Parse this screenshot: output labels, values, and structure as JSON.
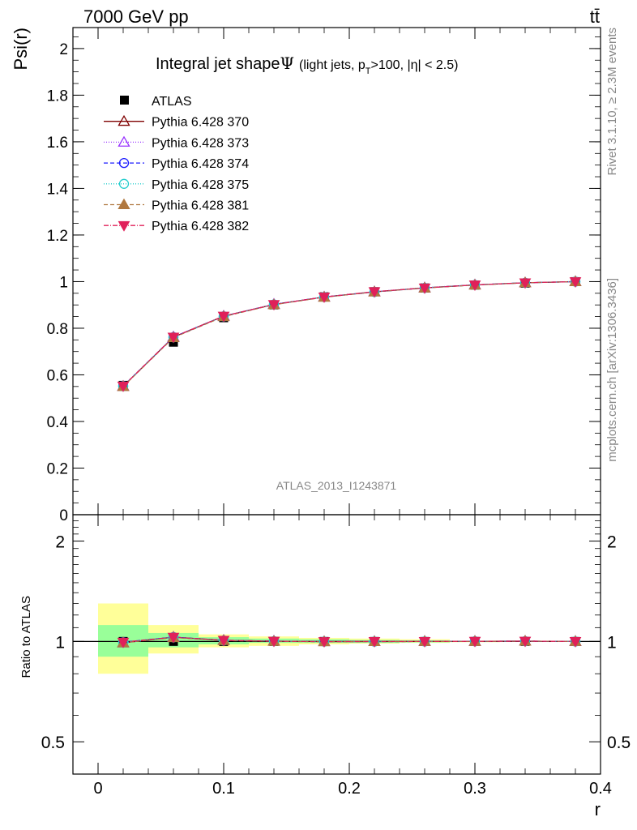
{
  "header": {
    "energy_label": "7000 GeV pp",
    "process_label": "tt̄",
    "analysis_id": "ATLAS_2013_I1243871",
    "rivet_label": "Rivet 3.1.10, ≥ 2.3M events",
    "mcplots_label": "mcplots.cern.ch [arXiv:1306.3436]"
  },
  "chart_data": [
    {
      "type": "line",
      "title": "Integral jet shapeΨ",
      "title_main": "Integral jet shape",
      "title_symbol": "Ψ",
      "title_cuts_a": "(light jets, p",
      "title_cuts_sub": "T",
      "title_cuts_b": ">100, |η| < 2.5)",
      "xlabel": "r",
      "ylabel": "Psi(r)",
      "xlim": [
        -0.02,
        0.4
      ],
      "ylim": [
        0,
        2.09
      ],
      "y_ticks": [
        {
          "v": 0,
          "label": "0"
        },
        {
          "v": 0.2,
          "label": "0.2"
        },
        {
          "v": 0.4,
          "label": "0.4"
        },
        {
          "v": 0.6,
          "label": "0.6"
        },
        {
          "v": 0.8,
          "label": "0.8"
        },
        {
          "v": 1.0,
          "label": "1"
        },
        {
          "v": 1.2,
          "label": "1.2"
        },
        {
          "v": 1.4,
          "label": "1.4"
        },
        {
          "v": 1.6,
          "label": "1.6"
        },
        {
          "v": 1.8,
          "label": "1.8"
        },
        {
          "v": 2.0,
          "label": "2"
        }
      ],
      "x": [
        0.02,
        0.06,
        0.1,
        0.14,
        0.18,
        0.22,
        0.26,
        0.3,
        0.34,
        0.38
      ],
      "data": {
        "name": "ATLAS",
        "values": [
          0.555,
          0.74,
          0.845,
          0.9,
          0.935,
          0.957,
          0.973,
          0.985,
          0.993,
          1.0
        ]
      },
      "series": [
        {
          "name": "Pythia 6.428 370",
          "color": "#7f0000",
          "marker": "triangle-up-open",
          "dash": "none",
          "values": [
            0.551,
            0.762,
            0.852,
            0.902,
            0.934,
            0.956,
            0.973,
            0.986,
            0.995,
            1.0
          ]
        },
        {
          "name": "Pythia 6.428 373",
          "color": "#9933ff",
          "marker": "triangle-up-open",
          "dash": "1,2",
          "values": [
            0.551,
            0.763,
            0.852,
            0.903,
            0.934,
            0.957,
            0.974,
            0.986,
            0.995,
            1.0
          ]
        },
        {
          "name": "Pythia 6.428 374",
          "color": "#1a1aff",
          "marker": "circle-open",
          "dash": "5,3",
          "values": [
            0.552,
            0.762,
            0.851,
            0.902,
            0.934,
            0.956,
            0.973,
            0.986,
            0.995,
            1.0
          ]
        },
        {
          "name": "Pythia 6.428 375",
          "color": "#22cccc",
          "marker": "circle-open",
          "dash": "1,2",
          "values": [
            0.551,
            0.761,
            0.851,
            0.902,
            0.934,
            0.956,
            0.973,
            0.986,
            0.995,
            1.0
          ]
        },
        {
          "name": "Pythia 6.428 381",
          "color": "#b07840",
          "marker": "triangle-up-filled",
          "dash": "5,3",
          "values": [
            0.55,
            0.76,
            0.85,
            0.901,
            0.933,
            0.956,
            0.973,
            0.985,
            0.995,
            1.0
          ]
        },
        {
          "name": "Pythia 6.428 382",
          "color": "#e0205a",
          "marker": "triangle-down-filled",
          "dash": "6,2,1,2",
          "values": [
            0.552,
            0.762,
            0.852,
            0.902,
            0.934,
            0.957,
            0.973,
            0.986,
            0.995,
            1.0
          ]
        }
      ]
    },
    {
      "type": "line",
      "ylabel": "Ratio to ATLAS",
      "xlabel": "r",
      "xlim": [
        -0.02,
        0.4
      ],
      "ylim": [
        0.4,
        2.4
      ],
      "y_scale": "log",
      "x_ticks": [
        {
          "v": 0,
          "label": "0"
        },
        {
          "v": 0.1,
          "label": "0.1"
        },
        {
          "v": 0.2,
          "label": "0.2"
        },
        {
          "v": 0.3,
          "label": "0.3"
        },
        {
          "v": 0.4,
          "label": "0.4"
        }
      ],
      "y_ticks": [
        {
          "v": 0.5,
          "label": "0.5"
        },
        {
          "v": 1,
          "label": "1"
        },
        {
          "v": 2,
          "label": "2"
        }
      ],
      "band_edges": [
        0.0,
        0.04,
        0.08,
        0.12,
        0.16,
        0.2,
        0.24,
        0.28,
        0.32,
        0.36,
        0.4
      ],
      "stat_band": [
        [
          0.9,
          1.12
        ],
        [
          0.96,
          1.06
        ],
        [
          0.98,
          1.03
        ],
        [
          0.99,
          1.02
        ],
        [
          0.99,
          1.015
        ],
        [
          0.99,
          1.01
        ],
        [
          0.993,
          1.007
        ],
        [
          0.996,
          1.004
        ],
        [
          0.998,
          1.002
        ],
        [
          1.0,
          1.0
        ]
      ],
      "total_band": [
        [
          0.8,
          1.3
        ],
        [
          0.92,
          1.12
        ],
        [
          0.96,
          1.05
        ],
        [
          0.97,
          1.035
        ],
        [
          0.98,
          1.025
        ],
        [
          0.985,
          1.02
        ],
        [
          0.99,
          1.015
        ],
        [
          0.995,
          1.005
        ],
        [
          0.998,
          1.002
        ],
        [
          1.0,
          1.0
        ]
      ],
      "data_ratio": [
        1.0,
        1.0,
        1.0,
        1.0,
        1.0,
        1.0,
        1.0,
        1.0,
        1.0,
        1.0
      ],
      "series_ratio": [
        {
          "name": "Pythia 6.428 370",
          "values": [
            0.99,
            1.03,
            1.008,
            1.002,
            0.999,
            0.999,
            1.0,
            1.001,
            1.002,
            1.0
          ]
        },
        {
          "name": "Pythia 6.428 373",
          "values": [
            0.99,
            1.031,
            1.008,
            1.003,
            0.999,
            1.0,
            1.001,
            1.001,
            1.002,
            1.0
          ]
        },
        {
          "name": "Pythia 6.428 374",
          "values": [
            0.995,
            1.03,
            1.007,
            1.002,
            0.999,
            0.999,
            1.0,
            1.001,
            1.002,
            1.0
          ]
        },
        {
          "name": "Pythia 6.428 375",
          "values": [
            0.993,
            1.028,
            1.007,
            1.002,
            0.999,
            0.999,
            1.0,
            1.001,
            1.002,
            1.0
          ]
        },
        {
          "name": "Pythia 6.428 381",
          "values": [
            0.991,
            1.027,
            1.006,
            1.001,
            0.998,
            0.999,
            1.0,
            1.0,
            1.002,
            1.0
          ]
        },
        {
          "name": "Pythia 6.428 382",
          "values": [
            0.995,
            1.03,
            1.008,
            1.002,
            0.999,
            1.0,
            1.0,
            1.001,
            1.002,
            1.0
          ]
        }
      ]
    }
  ],
  "colors": {
    "stat_band": "#99ff99",
    "total_band": "#ffff99",
    "axis": "#000000",
    "watermark": "#888888"
  }
}
